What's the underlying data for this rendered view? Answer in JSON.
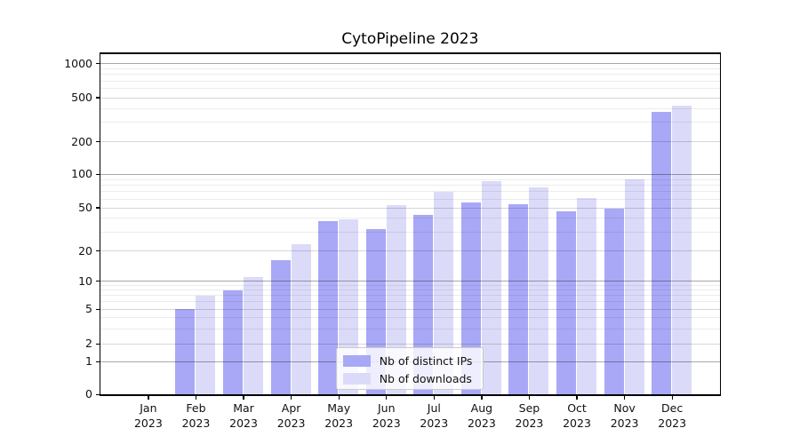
{
  "figure": {
    "title": "CytoPipeline 2023"
  },
  "chart_data": {
    "type": "bar",
    "title": "CytoPipeline 2023",
    "months": [
      "Jan",
      "Feb",
      "Mar",
      "Apr",
      "May",
      "Jun",
      "Jul",
      "Aug",
      "Sep",
      "Oct",
      "Nov",
      "Dec"
    ],
    "year": "2023",
    "categories": [
      "Jan 2023",
      "Feb 2023",
      "Mar 2023",
      "Apr 2023",
      "May 2023",
      "Jun 2023",
      "Jul 2023",
      "Aug 2023",
      "Sep 2023",
      "Oct 2023",
      "Nov 2023",
      "Dec 2023"
    ],
    "series": [
      {
        "name": "Nb of distinct IPs",
        "color": "#a8a8f7",
        "values": [
          0,
          5,
          8,
          16,
          38,
          32,
          43,
          56,
          54,
          46,
          49,
          375
        ]
      },
      {
        "name": "Nb of downloads",
        "color": "#dbdbf9",
        "values": [
          0,
          7,
          11,
          23,
          39,
          53,
          70,
          87,
          76,
          61,
          90,
          425
        ]
      }
    ],
    "xlabel": "",
    "ylabel": "",
    "yscale": "symlog",
    "yticks": [
      0,
      1,
      2,
      5,
      10,
      20,
      50,
      100,
      200,
      500,
      1000
    ],
    "y_minor_gridlines": [
      3,
      4,
      6,
      7,
      8,
      9,
      30,
      40,
      60,
      70,
      80,
      90,
      300,
      400,
      600,
      700,
      800,
      900
    ],
    "ylim": [
      0,
      1300
    ],
    "grid": "major and minor horizontal gridlines, drawn above bars",
    "legend": {
      "position": "lower center inside plot",
      "entries": [
        "Nb of distinct IPs",
        "Nb of downloads"
      ]
    }
  }
}
